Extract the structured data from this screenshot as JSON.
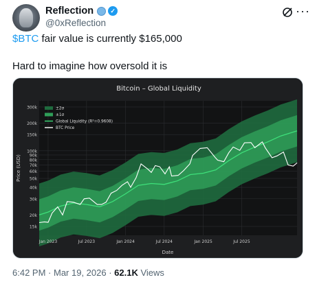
{
  "author": {
    "display_name": "Reflection",
    "handle": "@0xReflection"
  },
  "icons": {
    "avatar": "statue-avatar",
    "globe_badge": "globe-icon",
    "verified_badge": "verified-check-icon",
    "grok": "grok-icon",
    "more": "more-horizontal-icon"
  },
  "tweet": {
    "cashtag": "$BTC",
    "line1_rest": " fair value is currently $165,000",
    "line2": "Hard to imagine how oversold it is"
  },
  "footer": {
    "time": "6:42 PM",
    "sep1": " · ",
    "date": "Mar 19, 2026",
    "sep2": " · ",
    "views_count": "62.1K",
    "views_label": " Views"
  },
  "colors": {
    "accent": "#1d9bf0",
    "chart_bg": "#1e1f21",
    "plot_bg": "#121314",
    "band2": "#1f6b3e",
    "band1": "#2f9e58",
    "liquidity": "#3ee07a",
    "btc": "#ffffff"
  },
  "chart_data": {
    "type": "line",
    "title": "Bitcoin – Global Liquidity",
    "xlabel": "Date",
    "ylabel": "Price (USD)",
    "yscale": "log",
    "ylim": [
      12000,
      350000
    ],
    "xlim": [
      "2022-11-20",
      "2026-03-19"
    ],
    "y_ticks": [
      15000,
      20000,
      30000,
      40000,
      50000,
      60000,
      70000,
      80000,
      90000,
      100000,
      150000,
      200000,
      300000
    ],
    "y_tick_labels": [
      "15k",
      "20k",
      "30k",
      "40k",
      "50k",
      "60k",
      "70k",
      "80k",
      "90k",
      "100k",
      "150k",
      "200k",
      "300k"
    ],
    "x_ticks": [
      "2023-01-01",
      "2023-07-01",
      "2024-01-01",
      "2024-07-01",
      "2025-01-01",
      "2025-07-01"
    ],
    "x_tick_labels": [
      "Jan 2023",
      "Jul 2023",
      "Jan 2024",
      "Jul 2024",
      "Jan 2025",
      "Jul 2025"
    ],
    "grid": true,
    "legend": {
      "position": "top-left",
      "entries": [
        "±2σ",
        "±1σ",
        "Global Liquidity (R²=0.9608)",
        "BTC Price"
      ]
    },
    "series": [
      {
        "name": "Global Liquidity (R²=0.9608)",
        "x": [
          "2022-11-20",
          "2023-01-01",
          "2023-03-01",
          "2023-05-01",
          "2023-07-01",
          "2023-09-01",
          "2023-11-01",
          "2024-01-01",
          "2024-03-01",
          "2024-05-01",
          "2024-07-01",
          "2024-09-01",
          "2024-11-01",
          "2025-01-01",
          "2025-03-01",
          "2025-05-01",
          "2025-07-01",
          "2025-09-01",
          "2025-11-01",
          "2026-01-01",
          "2026-03-19"
        ],
        "values": [
          20000,
          21500,
          25000,
          27000,
          26000,
          24500,
          28000,
          34000,
          42000,
          44000,
          43000,
          47000,
          55000,
          57000,
          62000,
          78000,
          95000,
          110000,
          125000,
          145000,
          165000
        ]
      },
      {
        "name": "BTC Price",
        "x": [
          "2022-11-20",
          "2022-12-15",
          "2023-01-01",
          "2023-01-20",
          "2023-02-15",
          "2023-03-10",
          "2023-04-01",
          "2023-05-01",
          "2023-06-01",
          "2023-06-20",
          "2023-07-15",
          "2023-08-20",
          "2023-09-10",
          "2023-10-01",
          "2023-10-25",
          "2023-11-20",
          "2023-12-15",
          "2024-01-10",
          "2024-01-25",
          "2024-02-20",
          "2024-03-14",
          "2024-04-15",
          "2024-05-01",
          "2024-05-20",
          "2024-06-10",
          "2024-07-05",
          "2024-07-25",
          "2024-08-05",
          "2024-09-05",
          "2024-10-01",
          "2024-10-30",
          "2024-11-12",
          "2024-12-17",
          "2025-01-20",
          "2025-02-27",
          "2025-03-10",
          "2025-04-08",
          "2025-05-01",
          "2025-05-22",
          "2025-06-22",
          "2025-07-14",
          "2025-08-14",
          "2025-09-01",
          "2025-10-06",
          "2025-10-20",
          "2025-11-21",
          "2025-12-15",
          "2026-01-14",
          "2026-02-05",
          "2026-03-01",
          "2026-03-19"
        ],
        "values": [
          16500,
          16800,
          16600,
          21000,
          24500,
          20000,
          28000,
          27500,
          26000,
          30000,
          30500,
          26000,
          26000,
          27500,
          34500,
          37000,
          42000,
          46000,
          40000,
          51000,
          72000,
          63000,
          58000,
          69000,
          67000,
          56000,
          67000,
          53000,
          54000,
          61000,
          72000,
          89000,
          106000,
          108000,
          84000,
          79000,
          76000,
          95000,
          110000,
          101000,
          122000,
          123000,
          108000,
          125000,
          108000,
          84000,
          88000,
          97000,
          70000,
          68000,
          74000
        ]
      }
    ],
    "bands": [
      {
        "name": "±2σ",
        "factor": 2.2
      },
      {
        "name": "±1σ",
        "factor": 1.48
      }
    ]
  }
}
